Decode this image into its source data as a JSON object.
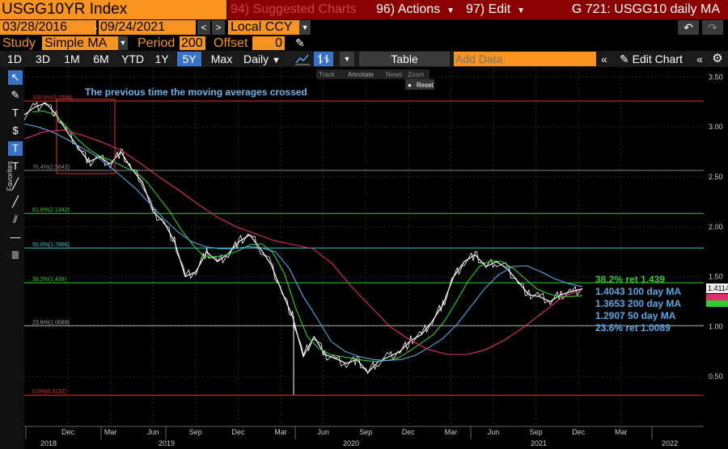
{
  "header": {
    "ticker": "USGG10YR Index",
    "suggested": "94) Suggested Charts",
    "actions": "96) Actions",
    "edit": "97) Edit",
    "title": "G 721: USGG10 daily MA"
  },
  "row2": {
    "start_date": "03/28/2016",
    "end_date": "09/24/2021",
    "currency": "Local CCY"
  },
  "row3": {
    "study_label": "Study",
    "study_value": "Simple MA",
    "period_label": "Period",
    "period_value": "200",
    "offset_label": "Offset",
    "offset_value": "0"
  },
  "toolbar": {
    "ranges": [
      "1D",
      "3D",
      "1M",
      "6M",
      "YTD",
      "1Y",
      "5Y",
      "Max"
    ],
    "active_range": "5Y",
    "frequency": "Daily",
    "table": "Table",
    "add_data_placeholder": "Add Data",
    "edit_chart": "Edit Chart"
  },
  "chart_tools": {
    "track": "Track",
    "annotate": "Annotate",
    "news": "News",
    "zoom": "Zoom",
    "reset": "Reset"
  },
  "sidebar": {
    "favorites": "Favorites"
  },
  "colors": {
    "price": "#ffffff",
    "ma50": "#33cc33",
    "ma100": "#5aa7e6",
    "ma200": "#e0306a",
    "fib_100": "#e03030",
    "fib_76": "#888888",
    "fib_61": "#33cc33",
    "fib_50": "#33cccc",
    "fib_38": "#33cc33",
    "fib_23": "#aaaaaa",
    "fib_0": "#e03030",
    "annotation": "#6fb3e8",
    "highlight_box": "#e03030"
  },
  "chart_data": {
    "type": "line",
    "x_ticks": [
      "Dec",
      "Mar",
      "Jun",
      "Sep",
      "Dec",
      "Mar",
      "Jun",
      "Sep",
      "Dec",
      "Mar",
      "Jun",
      "Sep",
      "Dec",
      "Mar"
    ],
    "year_labels": [
      "2018",
      "2019",
      "2020",
      "2021",
      "2022"
    ],
    "y_ticks": [
      "3.50",
      "3.00",
      "2.50",
      "2.00",
      "1.50",
      "1.00",
      "0.50"
    ],
    "ylim": [
      0.0,
      3.6
    ],
    "annotation": "The previous time the moving averages crossed",
    "fib_levels": [
      {
        "label": "100.0%(3.2594)",
        "value": 3.2594,
        "color_key": "fib_100"
      },
      {
        "label": "76.4%(2.5643)",
        "value": 2.5643,
        "color_key": "fib_76"
      },
      {
        "label": "61.8%(2.1342)",
        "value": 2.1342,
        "color_key": "fib_61"
      },
      {
        "label": "50.0%(1.7866)",
        "value": 1.7866,
        "color_key": "fib_50"
      },
      {
        "label": "38.2%(1.439)",
        "value": 1.439,
        "color_key": "fib_38"
      },
      {
        "label": "23.6%(1.0089)",
        "value": 1.0089,
        "color_key": "fib_23"
      },
      {
        "label": "0.0%(0.3137)",
        "value": 0.3137,
        "color_key": "fib_0"
      }
    ],
    "legend": [
      "38.2% ret 1.439",
      "1.4043 100 day MA",
      "1.3653 200 day MA",
      "1.2907 50 day MA",
      "23.6% ret 1.0089"
    ],
    "last_price_label": "1.4114",
    "series": [
      {
        "key": "price",
        "values": [
          3.12,
          3.2,
          3.24,
          3.12,
          2.95,
          2.8,
          2.65,
          2.7,
          2.63,
          2.75,
          2.58,
          2.45,
          2.15,
          2.05,
          1.85,
          1.5,
          1.55,
          1.75,
          1.65,
          1.73,
          1.85,
          1.92,
          1.78,
          1.62,
          1.35,
          1.1,
          0.7,
          0.9,
          0.72,
          0.68,
          0.63,
          0.67,
          0.54,
          0.65,
          0.7,
          0.75,
          0.86,
          0.92,
          1.05,
          1.22,
          1.5,
          1.65,
          1.72,
          1.6,
          1.65,
          1.58,
          1.45,
          1.32,
          1.3,
          1.25,
          1.32,
          1.35,
          1.38
        ]
      },
      {
        "key": "ma50",
        "values": [
          3.15,
          3.16,
          3.12,
          3.0,
          2.87,
          2.77,
          2.7,
          2.66,
          2.6,
          2.55,
          2.45,
          2.3,
          2.15,
          1.97,
          1.82,
          1.7,
          1.7,
          1.72,
          1.76,
          1.82,
          1.83,
          1.74,
          1.53,
          1.18,
          0.9,
          0.78,
          0.72,
          0.7,
          0.68,
          0.66,
          0.65,
          0.66,
          0.69,
          0.76,
          0.84,
          0.92,
          1.06,
          1.25,
          1.45,
          1.6,
          1.66,
          1.65,
          1.58,
          1.48,
          1.38,
          1.33,
          1.3,
          1.3,
          1.31
        ]
      },
      {
        "key": "ma100",
        "values": [
          3.03,
          3.0,
          2.95,
          2.88,
          2.8,
          2.72,
          2.62,
          2.5,
          2.38,
          2.23,
          2.08,
          1.95,
          1.85,
          1.8,
          1.78,
          1.78,
          1.8,
          1.79,
          1.75,
          1.58,
          1.3,
          1.08,
          0.85,
          0.75,
          0.7,
          0.67,
          0.66,
          0.67,
          0.71,
          0.79,
          0.88,
          1.02,
          1.2,
          1.38,
          1.52,
          1.6,
          1.61,
          1.55,
          1.48,
          1.43,
          1.4
        ]
      },
      {
        "key": "ma200",
        "values": [
          2.88,
          2.95,
          2.97,
          2.92,
          2.85,
          2.77,
          2.64,
          2.5,
          2.37,
          2.23,
          2.1,
          2.0,
          1.93,
          1.86,
          1.82,
          1.78,
          1.63,
          1.4,
          1.2,
          1.0,
          0.87,
          0.77,
          0.72,
          0.72,
          0.77,
          0.87,
          1.0,
          1.15,
          1.3,
          1.37
        ]
      }
    ]
  }
}
